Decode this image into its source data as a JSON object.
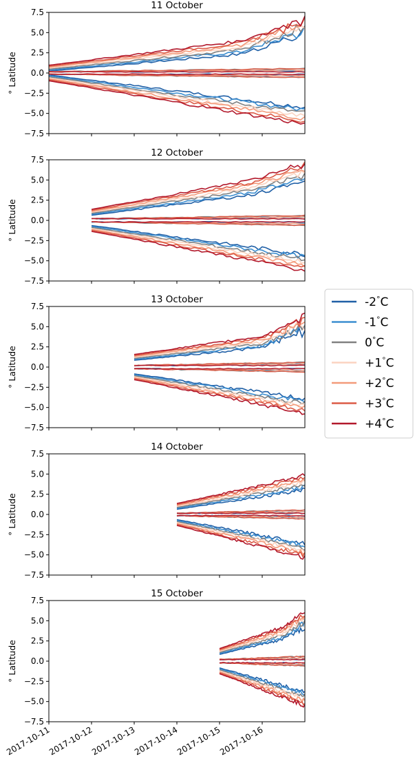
{
  "colors": {
    "minus2": "#1f5fa6",
    "minus1": "#3b8ed0",
    "zero": "#808080",
    "plus1": "#fbd3c0",
    "plus2": "#f39a7a",
    "plus3": "#dc5a45",
    "plus4": "#b2182b"
  },
  "chart_data": [
    {
      "type": "line",
      "title": "11 October",
      "ylabel": "° Latitude",
      "ylim": [
        -7.5,
        7.5
      ],
      "yticks": [
        "7.5",
        "5.0",
        "2.5",
        "0.0",
        "−2.5",
        "−5.0",
        "−7.5"
      ],
      "start_day": 0,
      "band": {
        "outer_start": 0.6,
        "inner_start": 0.15,
        "outer_end": 4.6,
        "top_spike": 7.5,
        "bottom_end": -6.3
      }
    },
    {
      "type": "line",
      "title": "12 October",
      "ylabel": "° Latitude",
      "ylim": [
        -7.5,
        7.5
      ],
      "yticks": [
        "7.5",
        "5.0",
        "2.5",
        "0.0",
        "−2.5",
        "−5.0",
        "−7.5"
      ],
      "start_day": 1,
      "band": {
        "outer_start": 1.0,
        "inner_start": 0.2,
        "outer_end": 5.8,
        "top_spike": 7.2,
        "bottom_end": -6.1
      }
    },
    {
      "type": "line",
      "title": "13 October",
      "ylabel": "° Latitude",
      "ylim": [
        -7.5,
        7.5
      ],
      "yticks": [
        "7.5",
        "5.0",
        "2.5",
        "0.0",
        "−2.5",
        "−5.0",
        "−7.5"
      ],
      "start_day": 2,
      "band": {
        "outer_start": 1.2,
        "inner_start": 0.2,
        "outer_end": 4.2,
        "top_spike": 6.8,
        "bottom_end": -5.6
      }
    },
    {
      "type": "line",
      "title": "14 October",
      "ylabel": "° Latitude",
      "ylim": [
        -7.5,
        7.5
      ],
      "yticks": [
        "7.5",
        "5.0",
        "2.5",
        "0.0",
        "−2.5",
        "−5.0",
        "−7.5"
      ],
      "start_day": 3,
      "band": {
        "outer_start": 1.0,
        "inner_start": 0.15,
        "outer_end": 4.4,
        "top_spike": 4.6,
        "bottom_end": -5.2
      }
    },
    {
      "type": "line",
      "title": "15 October",
      "ylabel": "° Latitude",
      "ylim": [
        -7.5,
        7.5
      ],
      "yticks": [
        "7.5",
        "5.0",
        "2.5",
        "0.0",
        "−2.5",
        "−5.0",
        "−7.5"
      ],
      "start_day": 4,
      "band": {
        "outer_start": 1.2,
        "inner_start": 0.2,
        "outer_end": 4.8,
        "top_spike": 6.3,
        "bottom_end": -5.4
      }
    }
  ],
  "xaxis": {
    "xlim_days": [
      0,
      6.0
    ],
    "ticks": [
      "2017-10-11",
      "2017-10-12",
      "2017-10-13",
      "2017-10-14",
      "2017-10-15",
      "2017-10-16"
    ]
  },
  "legend": {
    "placement": "right",
    "entries": [
      {
        "label": "-2$^\\circ$C",
        "text": "-2",
        "color_key": "minus2"
      },
      {
        "label": "-1°C",
        "text": "-1",
        "color_key": "minus1"
      },
      {
        "label": "0°C",
        "text": "0",
        "color_key": "zero"
      },
      {
        "label": "+1°C",
        "text": "+1",
        "color_key": "plus1"
      },
      {
        "label": "+2°C",
        "text": "+2",
        "color_key": "plus2"
      },
      {
        "label": "+3°C",
        "text": "+3",
        "color_key": "plus3"
      },
      {
        "label": "+4°C",
        "text": "+4",
        "color_key": "plus4"
      }
    ]
  }
}
